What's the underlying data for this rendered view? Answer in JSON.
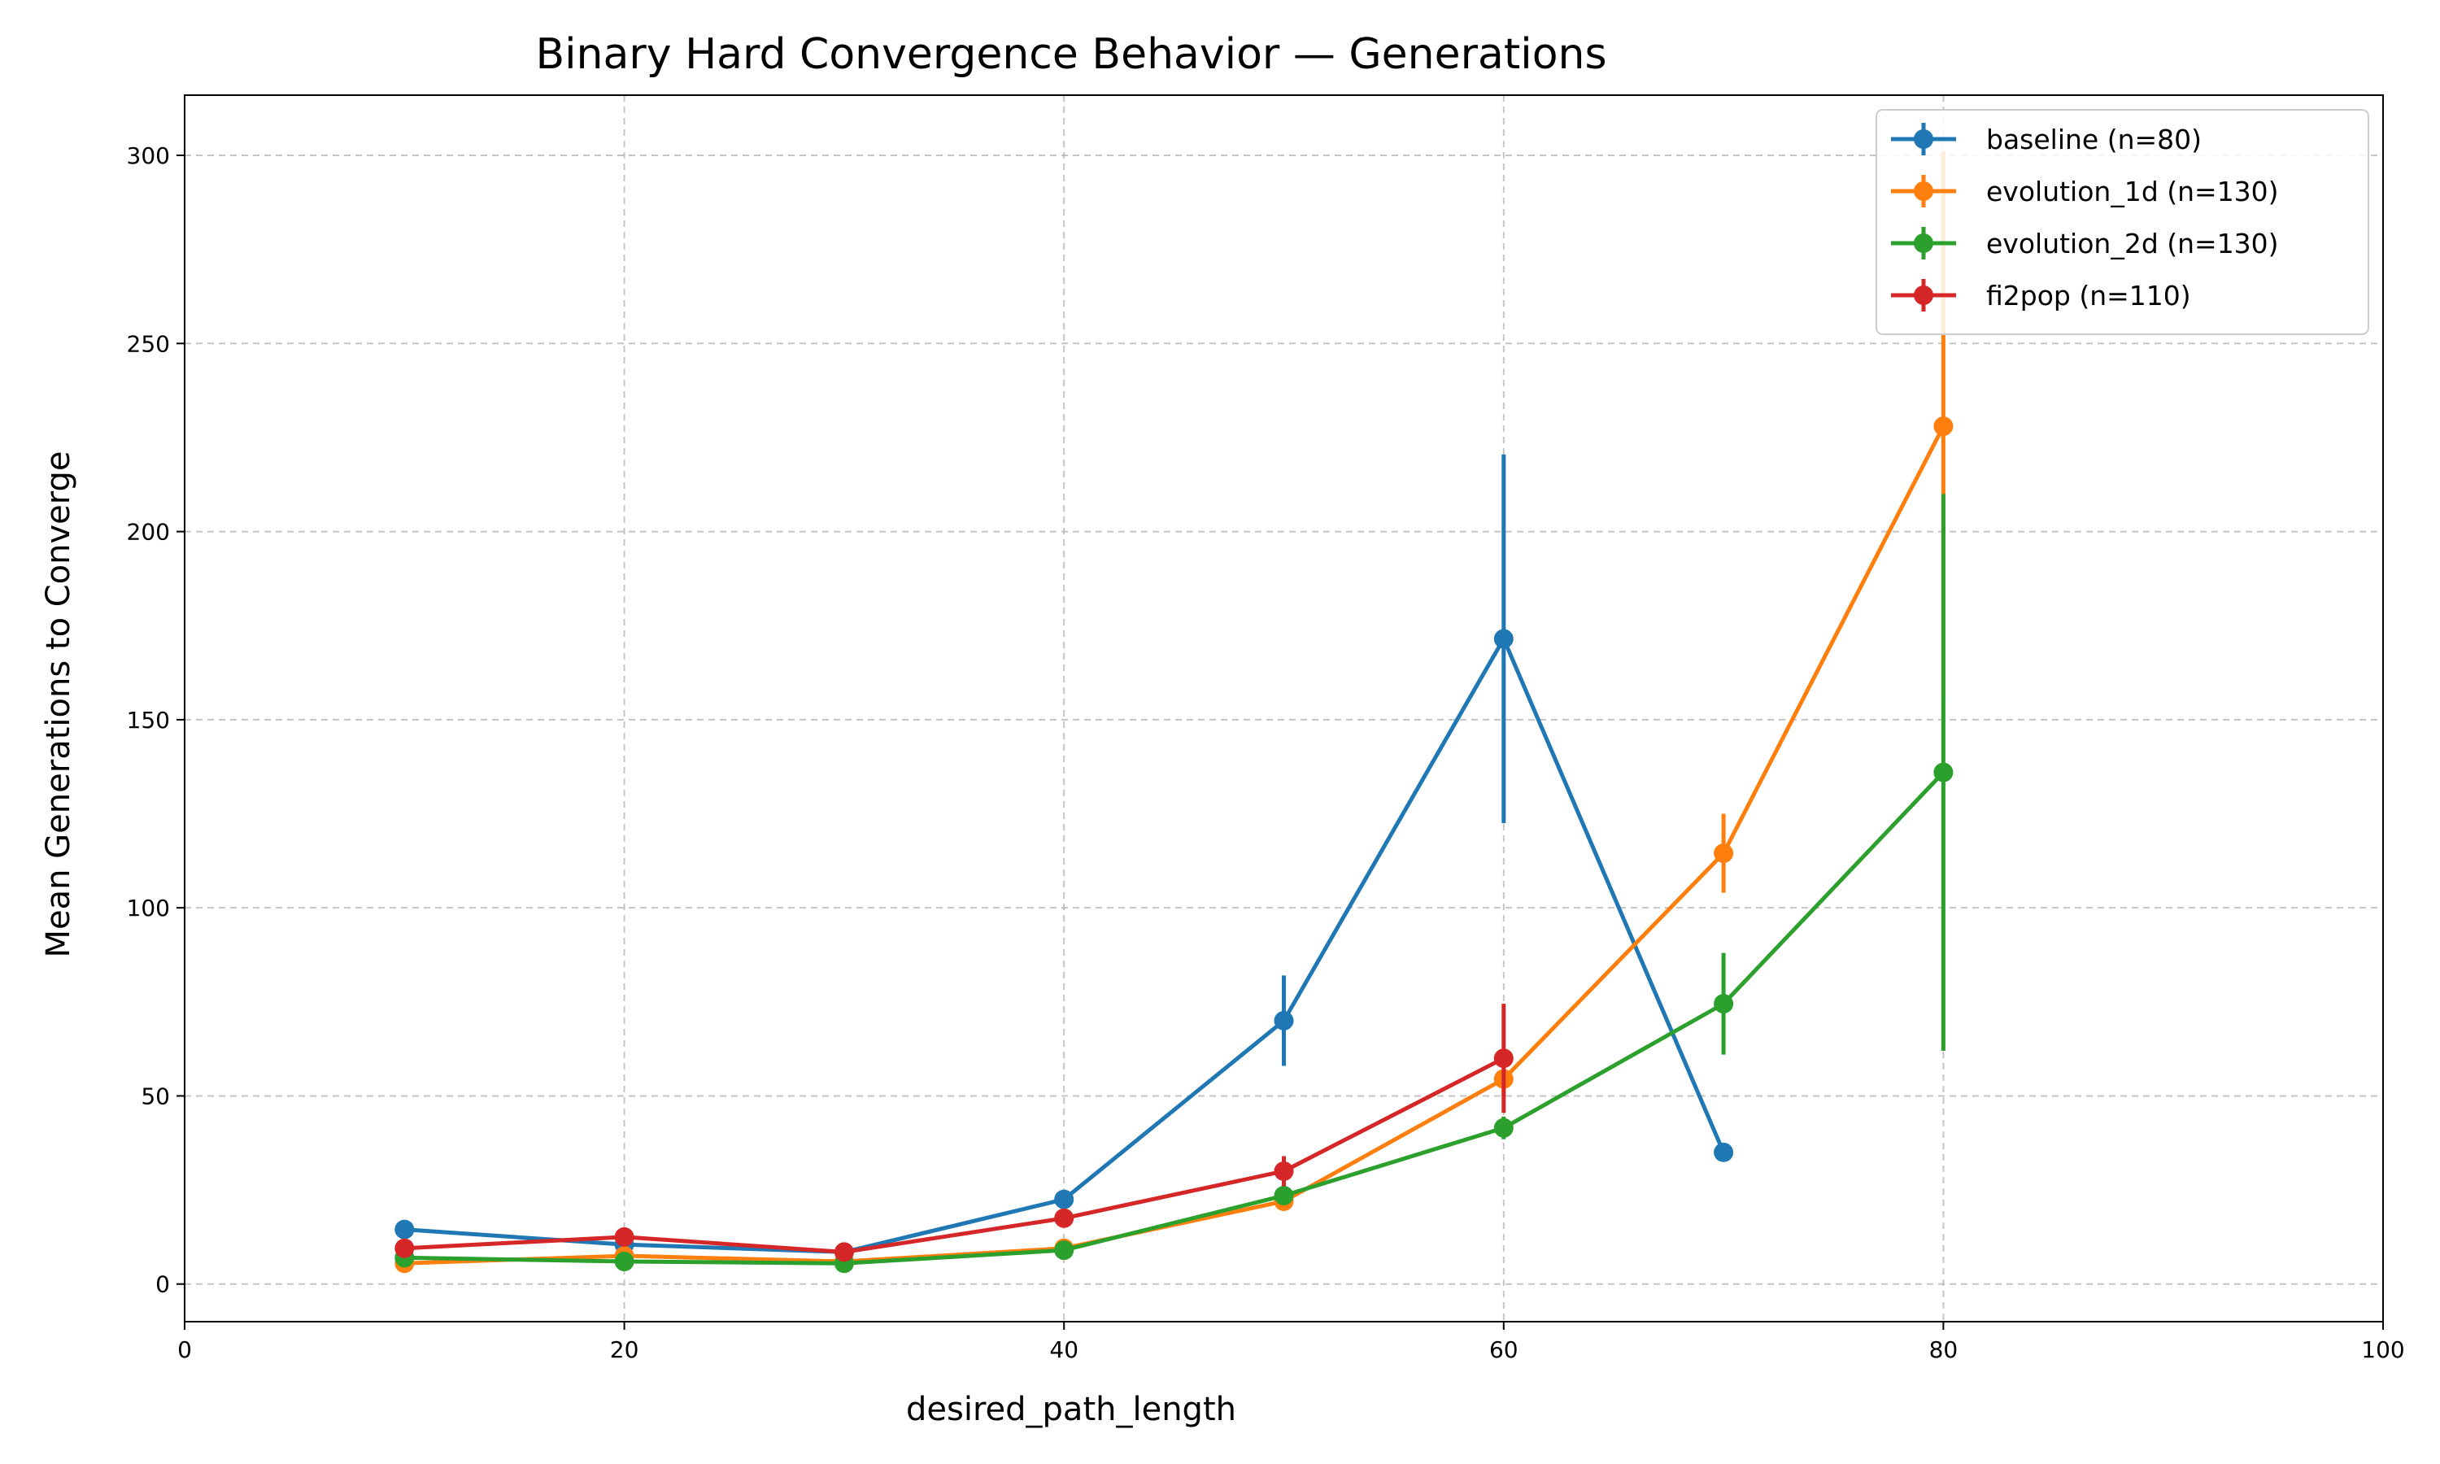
{
  "chart_data": {
    "type": "line",
    "title": "Binary Hard Convergence Behavior — Generations",
    "xlabel": "desired_path_length",
    "ylabel": "Mean Generations to Converge",
    "xlim": [
      0,
      100
    ],
    "ylim": [
      -10,
      316
    ],
    "xticks": [
      0,
      20,
      40,
      60,
      80,
      100
    ],
    "yticks": [
      0,
      50,
      100,
      150,
      200,
      250,
      300
    ],
    "grid": true,
    "legend_position": "top-right",
    "error_bars": true,
    "series": [
      {
        "name": "baseline (n=80)",
        "color": "#1f77b4",
        "x": [
          10,
          20,
          30,
          40,
          50,
          60,
          70
        ],
        "y": [
          14.5,
          10.5,
          8.5,
          22.5,
          70,
          171.5,
          35
        ],
        "err": [
          0.8,
          0.8,
          0.6,
          1.2,
          12,
          49,
          0
        ]
      },
      {
        "name": "evolution_1d (n=130)",
        "color": "#ff7f0e",
        "x": [
          10,
          20,
          30,
          40,
          50,
          60,
          70,
          80
        ],
        "y": [
          5.5,
          7.5,
          6,
          9.5,
          22,
          54.5,
          114.5,
          228
        ],
        "err": [
          0.5,
          0.6,
          0.5,
          0.8,
          2,
          4.5,
          10.5,
          73
        ]
      },
      {
        "name": "evolution_2d (n=130)",
        "color": "#2ca02c",
        "x": [
          10,
          20,
          30,
          40,
          50,
          60,
          70,
          80
        ],
        "y": [
          7,
          6,
          5.5,
          9,
          23.5,
          41.5,
          74.5,
          136
        ],
        "err": [
          0.5,
          0.5,
          0.4,
          0.8,
          2,
          3,
          13.5,
          74
        ]
      },
      {
        "name": "fi2pop (n=110)",
        "color": "#d62728",
        "x": [
          10,
          20,
          30,
          40,
          50,
          60
        ],
        "y": [
          9.5,
          12.5,
          8.5,
          17.5,
          30,
          60
        ],
        "err": [
          0.8,
          0.8,
          0.6,
          1.2,
          4,
          14.5
        ]
      }
    ]
  }
}
